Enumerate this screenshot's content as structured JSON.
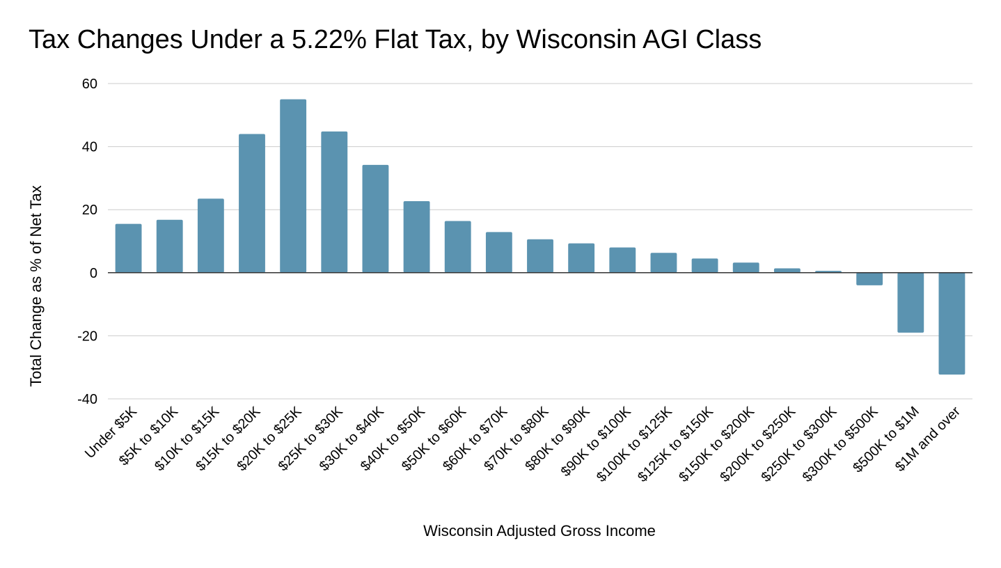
{
  "chart_data": {
    "type": "bar",
    "title": "Tax Changes Under a 5.22% Flat Tax, by Wisconsin AGI Class",
    "xlabel": "Wisconsin Adjusted Gross Income",
    "ylabel": "Total Change as % of Net Tax",
    "ylim": [
      -40,
      60
    ],
    "yticks": [
      60,
      40,
      20,
      0,
      -20,
      -40
    ],
    "grid": true,
    "legend": "none",
    "bar_color": "#5b93b0",
    "categories": [
      "Under $5K",
      "$5K to $10K",
      "$10K to $15K",
      "$15K to $20K",
      "$20K to $25K",
      "$25K to $30K",
      "$30K to $40K",
      "$40K to $50K",
      "$50K to $60K",
      "$60K to $70K",
      "$70K to $80K",
      "$80K to $90K",
      "$90K to $100K",
      "$100K to $125K",
      "$125K to $150K",
      "$150K to $200K",
      "$200K to $250K",
      "$250K to $300K",
      "$300K to $500K",
      "$500K to $1M",
      "$1M and over"
    ],
    "values": [
      15.5,
      16.8,
      23.5,
      44.0,
      55.0,
      44.8,
      34.2,
      22.7,
      16.4,
      12.9,
      10.6,
      9.3,
      8.0,
      6.3,
      4.5,
      3.2,
      1.4,
      0.6,
      -4.0,
      -19.0,
      -32.3
    ]
  }
}
